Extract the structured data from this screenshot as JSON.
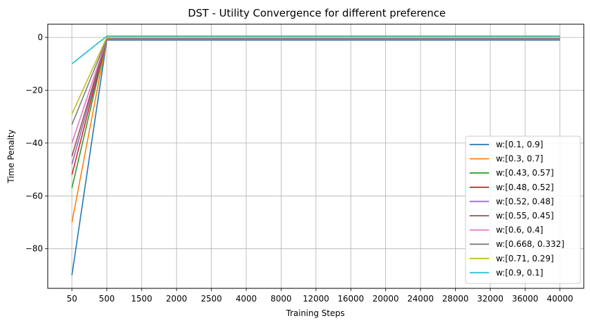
{
  "chart_data": {
    "type": "line",
    "title": "DST - Utility Convergence for different preference",
    "xlabel": "Training Steps",
    "ylabel": "Time Penalty",
    "categories": [
      "50",
      "500",
      "1500",
      "2000",
      "2500",
      "4000",
      "8000",
      "12000",
      "16000",
      "20000",
      "24000",
      "28000",
      "32000",
      "36000",
      "40000"
    ],
    "ylim": [
      -95,
      5
    ],
    "yticks": [
      0,
      -20,
      -40,
      -60,
      -80
    ],
    "grid": true,
    "legend_position": "lower right",
    "series": [
      {
        "name": "w:[0.1, 0.9]",
        "color": "#1f77b4",
        "values": [
          -90,
          -1,
          -1,
          -1,
          -1,
          -1,
          -1,
          -1,
          -1,
          -1,
          -1,
          -1,
          -1,
          -1,
          -1
        ]
      },
      {
        "name": "w:[0.3, 0.7]",
        "color": "#ff7f0e",
        "values": [
          -70,
          -0.8,
          -0.8,
          -0.8,
          -0.8,
          -0.8,
          -0.8,
          -0.8,
          -0.8,
          -0.8,
          -0.8,
          -0.8,
          -0.8,
          -0.8,
          -0.8
        ]
      },
      {
        "name": "w:[0.43, 0.57]",
        "color": "#2ca02c",
        "values": [
          -57,
          -0.7,
          -0.7,
          -0.7,
          -0.7,
          -0.7,
          -0.7,
          -0.7,
          -0.7,
          -0.7,
          -0.7,
          -0.7,
          -0.7,
          -0.7,
          -0.7
        ]
      },
      {
        "name": "w:[0.48, 0.52]",
        "color": "#d62728",
        "values": [
          -52,
          -0.6,
          -0.6,
          -0.6,
          -0.6,
          -0.6,
          -0.6,
          -0.6,
          -0.6,
          -0.6,
          -0.6,
          -0.6,
          -0.6,
          -0.6,
          -0.6
        ]
      },
      {
        "name": "w:[0.52, 0.48]",
        "color": "#9467bd",
        "values": [
          -48,
          -0.6,
          -0.6,
          -0.6,
          -0.6,
          -0.6,
          -0.6,
          -0.6,
          -0.6,
          -0.6,
          -0.6,
          -0.6,
          -0.6,
          -0.6,
          -0.6
        ]
      },
      {
        "name": "w:[0.55, 0.45]",
        "color": "#8c564b",
        "values": [
          -45,
          -0.5,
          -0.5,
          -0.5,
          -0.5,
          -0.5,
          -0.5,
          -0.5,
          -0.5,
          -0.5,
          -0.5,
          -0.5,
          -0.5,
          -0.5,
          -0.5
        ]
      },
      {
        "name": "w:[0.6, 0.4]",
        "color": "#e377c2",
        "values": [
          -40,
          -0.5,
          -0.5,
          -0.5,
          -0.5,
          -0.5,
          -0.5,
          -0.5,
          -0.5,
          -0.5,
          -0.5,
          -0.5,
          -0.5,
          -0.5,
          -0.5
        ]
      },
      {
        "name": "w:[0.668, 0.332]",
        "color": "#7f7f7f",
        "values": [
          -33,
          -0.5,
          -0.5,
          -0.5,
          -0.5,
          -0.5,
          -0.5,
          -0.5,
          -0.5,
          -0.5,
          -0.5,
          -0.5,
          -0.5,
          -0.5,
          -0.5
        ]
      },
      {
        "name": "w:[0.71, 0.29]",
        "color": "#bcbd22",
        "values": [
          -29,
          0,
          0,
          0,
          0,
          0,
          0,
          0,
          0,
          0,
          0,
          0,
          0,
          0,
          0
        ]
      },
      {
        "name": "w:[0.9, 0.1]",
        "color": "#17becf",
        "values": [
          -10,
          0.5,
          0.5,
          0.5,
          0.5,
          0.5,
          0.5,
          0.5,
          0.5,
          0.5,
          0.5,
          0.5,
          0.5,
          0.5,
          0.5
        ]
      }
    ]
  }
}
